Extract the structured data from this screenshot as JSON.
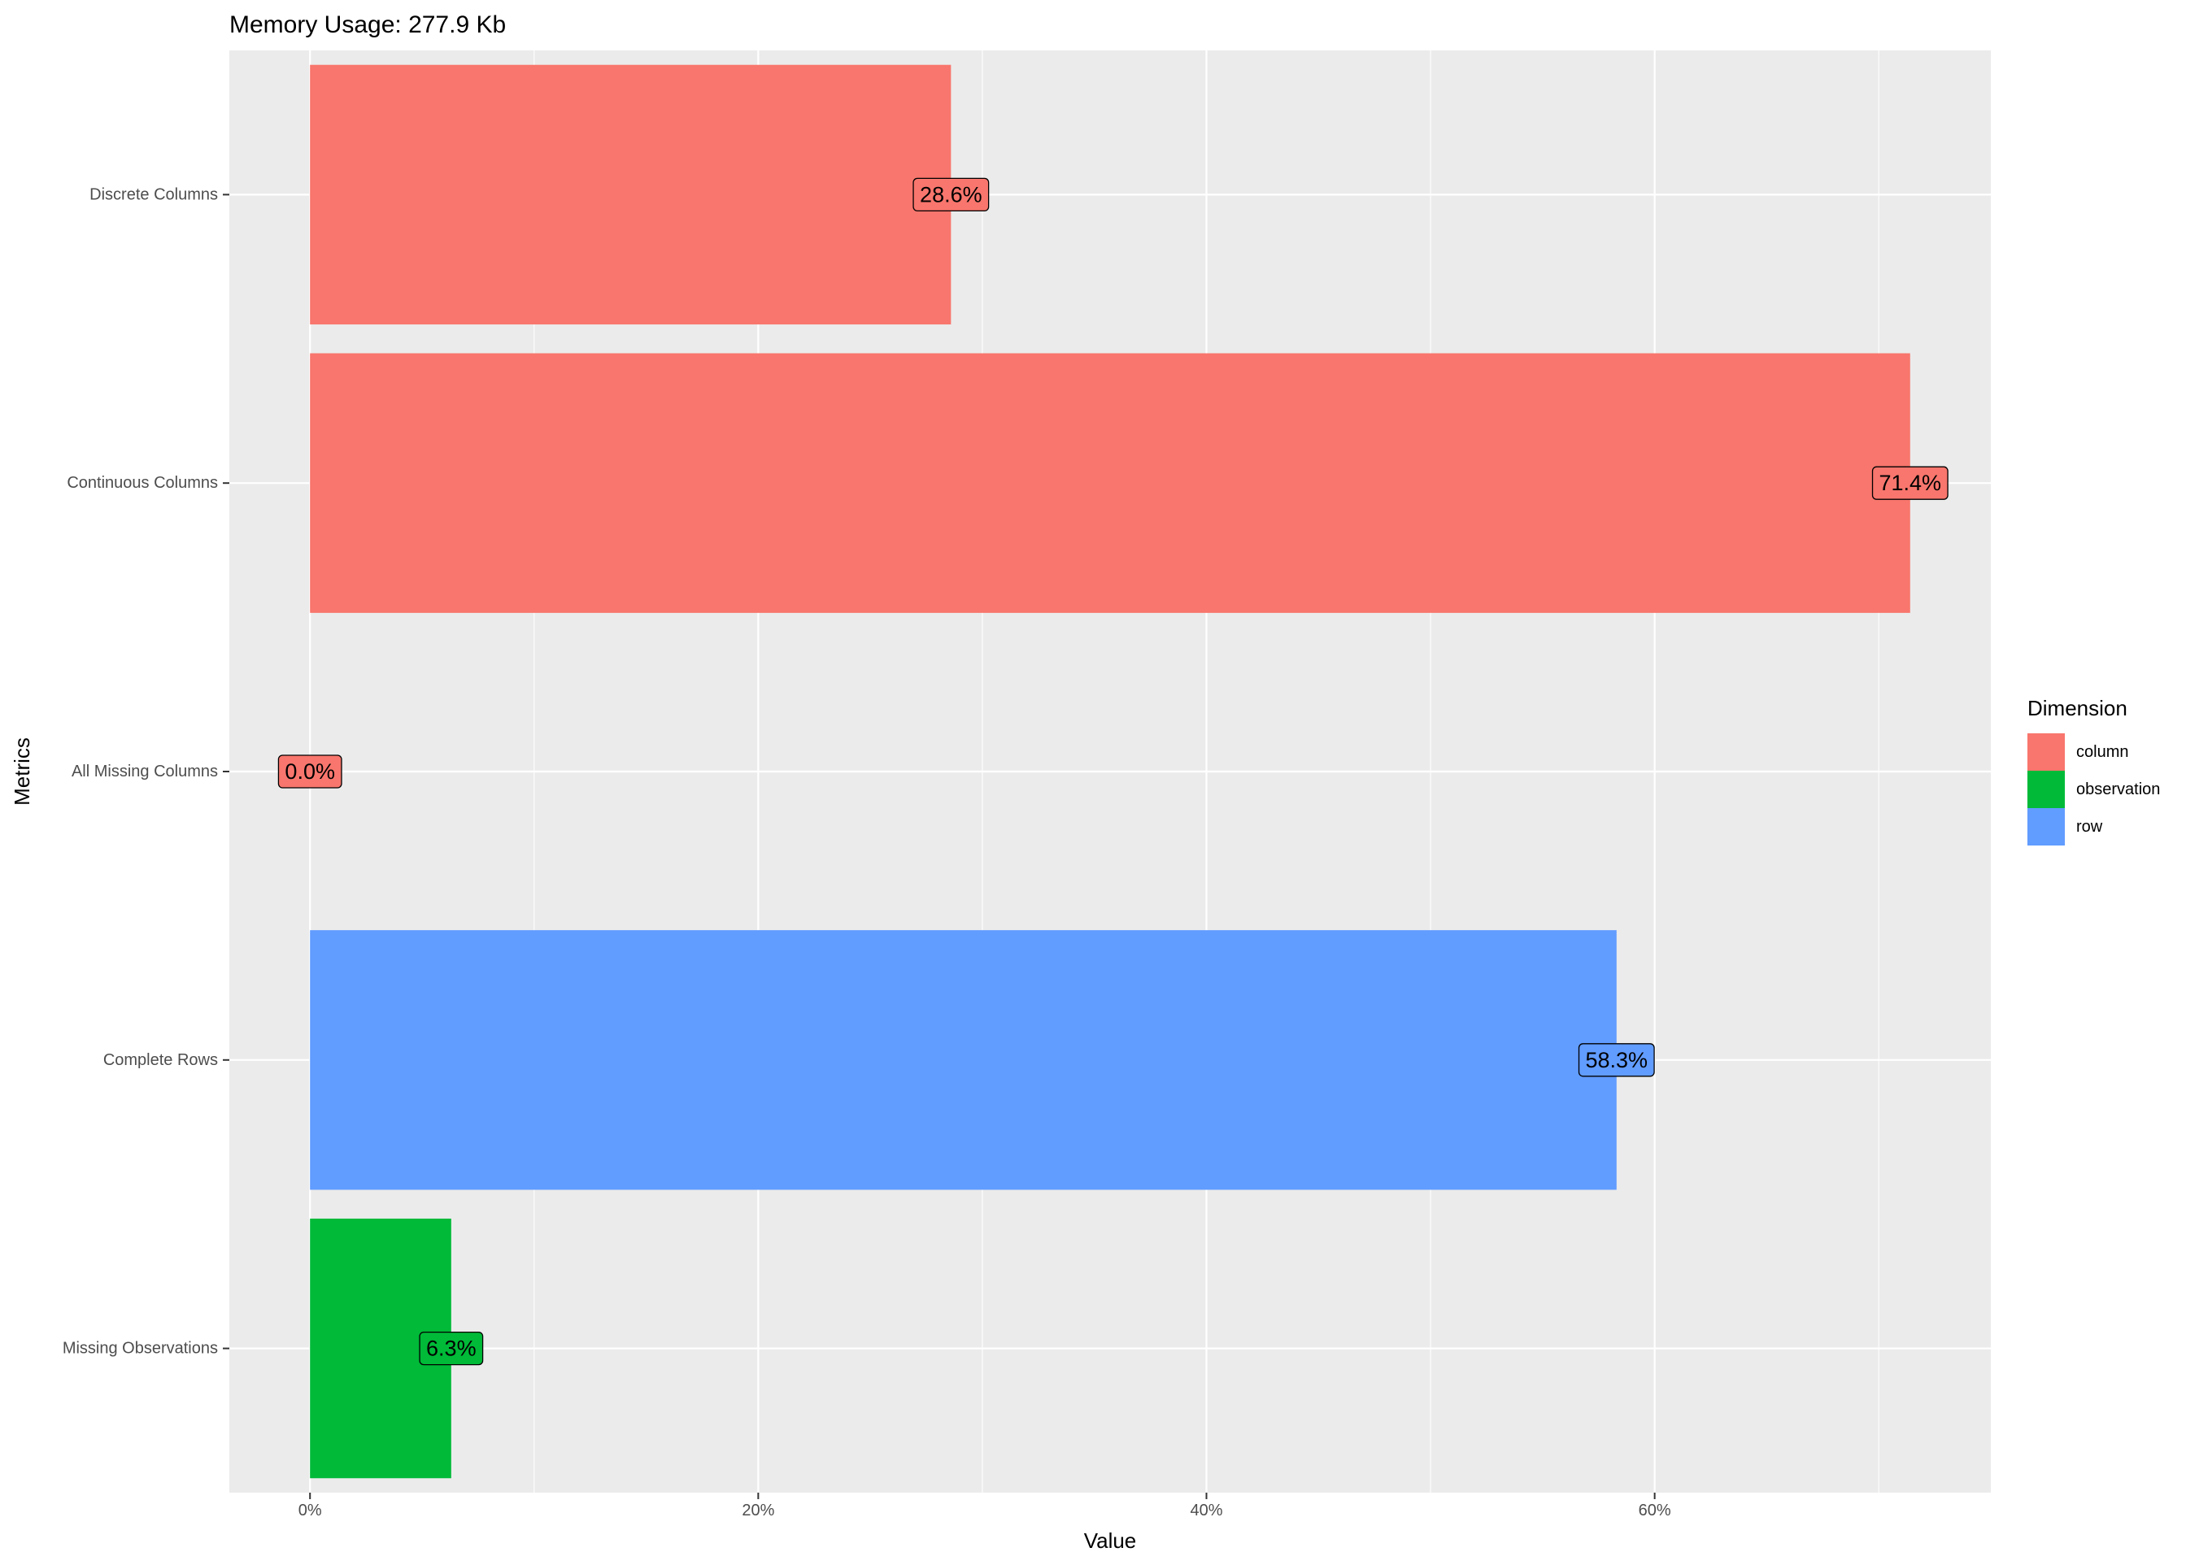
{
  "chart_data": {
    "type": "bar",
    "orientation": "horizontal",
    "title": "Memory Usage: 277.9 Kb",
    "xlabel": "Value",
    "ylabel": "Metrics",
    "categories": [
      "Discrete Columns",
      "Continuous Columns",
      "All Missing Columns",
      "Complete Rows",
      "Missing Observations"
    ],
    "values": [
      28.6,
      71.4,
      0.0,
      58.3,
      6.3
    ],
    "value_labels": [
      "28.6%",
      "71.4%",
      "0.0%",
      "58.3%",
      "6.3%"
    ],
    "dimension": [
      "column",
      "column",
      "column",
      "row",
      "observation"
    ],
    "xlim": [
      -3.6,
      75
    ],
    "x_ticks": [
      0,
      20,
      40,
      60
    ],
    "x_tick_labels": [
      "0%",
      "20%",
      "40%",
      "60%"
    ],
    "grid": true,
    "legend": {
      "title": "Dimension",
      "placement": "right",
      "entries": [
        {
          "name": "column",
          "color": "#F8766D"
        },
        {
          "name": "observation",
          "color": "#00BA38"
        },
        {
          "name": "row",
          "color": "#619CFF"
        }
      ]
    },
    "panel_background": "#EBEBEB",
    "grid_color": "#FFFFFF"
  }
}
